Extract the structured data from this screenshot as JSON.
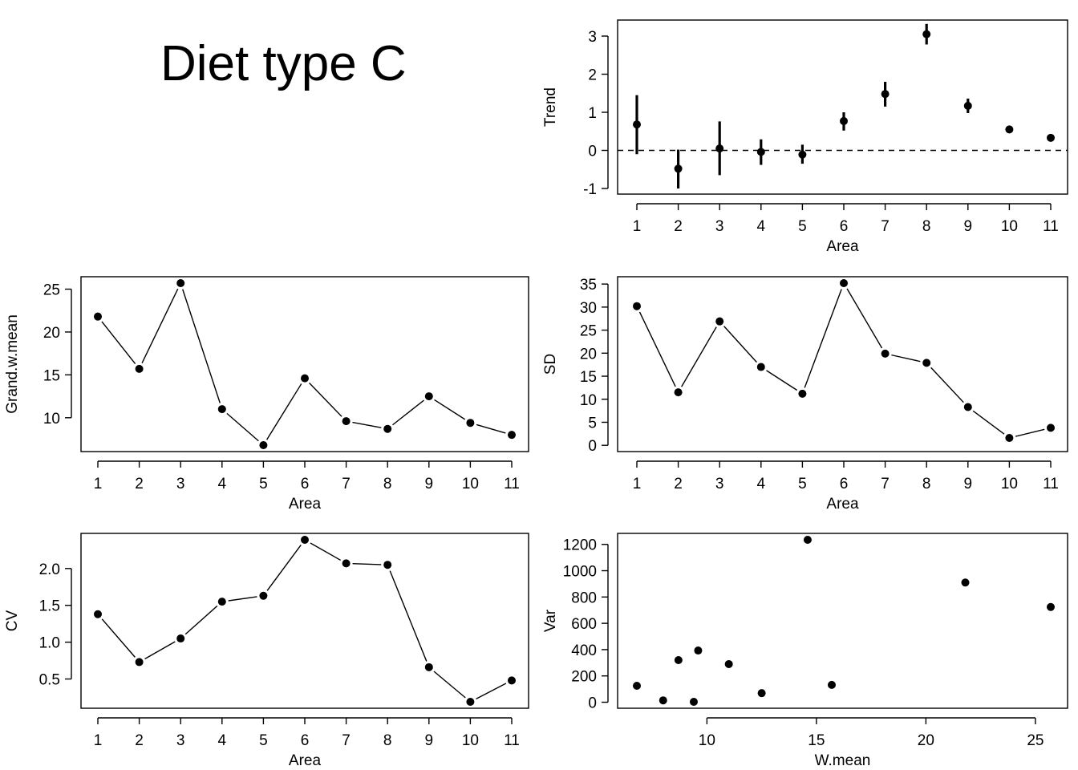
{
  "figure": {
    "title": "Diet type C"
  },
  "chart_data": [
    {
      "id": "trend",
      "type": "scatter",
      "xlabel": "Area",
      "ylabel": "Trend",
      "xlim": [
        1,
        11
      ],
      "ylim": [
        -1,
        3
      ],
      "xticks": [
        1,
        2,
        3,
        4,
        5,
        6,
        7,
        8,
        9,
        10,
        11
      ],
      "yticks": [
        -1,
        0,
        1,
        2,
        3
      ],
      "x": [
        1,
        2,
        3,
        4,
        5,
        6,
        7,
        8,
        9,
        10,
        11
      ],
      "y": [
        0.68,
        -0.48,
        0.05,
        -0.04,
        -0.11,
        0.77,
        1.48,
        3.05,
        1.17,
        0.55,
        0.33
      ],
      "lower": [
        -0.1,
        -1.0,
        -0.65,
        -0.38,
        -0.35,
        0.52,
        1.15,
        2.78,
        0.98,
        0.49,
        0.27
      ],
      "upper": [
        1.45,
        0.02,
        0.76,
        0.29,
        0.15,
        1.0,
        1.8,
        3.32,
        1.36,
        0.61,
        0.4
      ],
      "reference_line": {
        "y": 0,
        "style": "dashed"
      },
      "error_bars": true,
      "connect_points": false
    },
    {
      "id": "grand-w-mean",
      "type": "line",
      "xlabel": "Area",
      "ylabel": "Grand.w.mean",
      "xlim": [
        1,
        11
      ],
      "ylim": [
        6.8,
        25.7
      ],
      "xticks": [
        1,
        2,
        3,
        4,
        5,
        6,
        7,
        8,
        9,
        10,
        11
      ],
      "yticks": [
        10,
        15,
        20,
        25
      ],
      "x": [
        1,
        2,
        3,
        4,
        5,
        6,
        7,
        8,
        9,
        10,
        11
      ],
      "y": [
        21.8,
        15.7,
        25.7,
        11.0,
        6.8,
        14.6,
        9.6,
        8.7,
        12.5,
        9.4,
        8.0
      ],
      "markers": true
    },
    {
      "id": "sd",
      "type": "line",
      "xlabel": "Area",
      "ylabel": "SD",
      "xlim": [
        1,
        11
      ],
      "ylim": [
        1.6,
        35.2
      ],
      "xticks": [
        1,
        2,
        3,
        4,
        5,
        6,
        7,
        8,
        9,
        10,
        11
      ],
      "yticks": [
        0,
        5,
        10,
        15,
        20,
        25,
        30,
        35
      ],
      "x": [
        1,
        2,
        3,
        4,
        5,
        6,
        7,
        8,
        9,
        10,
        11
      ],
      "y": [
        30.2,
        11.5,
        26.9,
        17.0,
        11.2,
        35.2,
        19.9,
        17.9,
        8.3,
        1.6,
        3.8
      ],
      "markers": true
    },
    {
      "id": "cv",
      "type": "line",
      "xlabel": "Area",
      "ylabel": "CV",
      "xlim": [
        1,
        11
      ],
      "ylim": [
        0.19,
        2.39
      ],
      "xticks": [
        1,
        2,
        3,
        4,
        5,
        6,
        7,
        8,
        9,
        10,
        11
      ],
      "yticks": [
        "0.5",
        "1.0",
        "1.5",
        "2.0"
      ],
      "x": [
        1,
        2,
        3,
        4,
        5,
        6,
        7,
        8,
        9,
        10,
        11
      ],
      "y": [
        1.38,
        0.73,
        1.05,
        1.55,
        1.63,
        2.39,
        2.07,
        2.05,
        0.66,
        0.19,
        0.48
      ],
      "markers": true
    },
    {
      "id": "var",
      "type": "scatter",
      "xlabel": "W.mean",
      "ylabel": "Var",
      "xlim": [
        6.8,
        25.7
      ],
      "ylim": [
        3,
        1235
      ],
      "xticks": [
        10,
        15,
        20,
        25
      ],
      "yticks": [
        0,
        200,
        400,
        600,
        800,
        1000,
        1200
      ],
      "x": [
        6.8,
        8.0,
        8.7,
        9.4,
        9.6,
        11.0,
        12.5,
        14.6,
        15.7,
        21.8,
        25.7
      ],
      "y": [
        125,
        14,
        320,
        3,
        393,
        290,
        69,
        1235,
        132,
        910,
        724
      ],
      "connect_points": false
    }
  ]
}
